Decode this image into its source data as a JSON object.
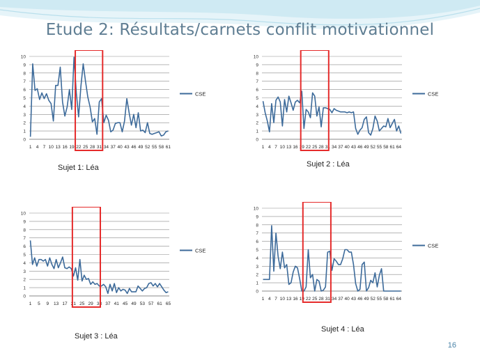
{
  "slide": {
    "title": "Etude 2: Résultats/carnets conflit motivationnel",
    "page_number": "16",
    "colors": {
      "line": "#3c6a9a",
      "highlight": "#e52b2b",
      "title": "#5f7e93",
      "wave": "#c7e6f1"
    }
  },
  "chart_data": [
    {
      "type": "line",
      "subject": "Sujet 1: Léa",
      "legend": "CSE",
      "legend_position": "right",
      "ylim": [
        0,
        10
      ],
      "yticks": [
        "0",
        "1",
        "2",
        "3",
        "4",
        "5",
        "6",
        "7",
        "8",
        "9",
        "10"
      ],
      "xtick_labels": [
        "1",
        "4",
        "7",
        "10",
        "13",
        "16",
        "19",
        "22",
        "25",
        "28",
        "31",
        "34",
        "37",
        "40",
        "43",
        "46",
        "49",
        "52",
        "55",
        "58",
        "61"
      ],
      "xtick_step": 3,
      "grid": true,
      "highlight_range": [
        21,
        32
      ],
      "series": [
        {
          "values": [
            0.3,
            9.1,
            5.9,
            6.1,
            4.8,
            5.6,
            4.9,
            5.5,
            4.7,
            4.3,
            2.2,
            6.5,
            6.5,
            8.7,
            4.5,
            2.8,
            3.9,
            6.0,
            3.6,
            9.9,
            5.6,
            2.7,
            6.4,
            9.1,
            7.0,
            5.1,
            3.9,
            2.1,
            2.5,
            0.6,
            4.5,
            4.9,
            2.0,
            2.9,
            2.3,
            0.9,
            1.1,
            1.9,
            2.0,
            2.0,
            0.9,
            2.2,
            4.9,
            3.2,
            1.7,
            3.0,
            1.4,
            3.2,
            1.0,
            1.1,
            0.8,
            2.0,
            0.7,
            0.6,
            0.7,
            0.8,
            0.9,
            0.4,
            0.5,
            0.9,
            1.0
          ]
        }
      ]
    },
    {
      "type": "line",
      "subject": "Sujet 2 : Léa",
      "legend": "CSE",
      "legend_position": "right",
      "ylim": [
        0,
        10
      ],
      "yticks": [
        "0",
        "1",
        "2",
        "3",
        "4",
        "5",
        "6",
        "7",
        "8",
        "9",
        "10"
      ],
      "xtick_labels": [
        "1",
        "4",
        "7",
        "10",
        "13",
        "16",
        "19",
        "22",
        "25",
        "28",
        "31",
        "34",
        "37",
        "40",
        "43",
        "46",
        "49",
        "52",
        "55",
        "58",
        "61",
        "64"
      ],
      "xtick_step": 3,
      "grid": true,
      "highlight_range": [
        19,
        31
      ],
      "series": [
        {
          "values": [
            4.6,
            3.2,
            2.2,
            0.9,
            4.3,
            2.0,
            4.7,
            5.1,
            4.5,
            1.6,
            4.8,
            3.3,
            5.2,
            4.4,
            3.5,
            4.5,
            4.7,
            4.4,
            5.8,
            1.3,
            3.6,
            3.3,
            2.6,
            5.6,
            5.2,
            2.8,
            3.9,
            1.5,
            3.8,
            3.8,
            3.7,
            3.6,
            3.2,
            3.7,
            3.5,
            3.4,
            3.3,
            3.3,
            3.3,
            3.2,
            3.3,
            3.2,
            3.3,
            1.3,
            0.6,
            1.1,
            1.4,
            2.4,
            2.7,
            0.8,
            0.5,
            1.3,
            2.8,
            2.2,
            1.0,
            1.3,
            1.6,
            1.5,
            2.5,
            1.4,
            1.9,
            2.4,
            1.0,
            1.6,
            0.7
          ]
        }
      ]
    },
    {
      "type": "line",
      "subject": "Sujet 3 : Léa",
      "legend": "CSE",
      "legend_position": "right",
      "ylim": [
        0,
        10
      ],
      "yticks": [
        "0",
        "1",
        "2",
        "3",
        "4",
        "5",
        "6",
        "7",
        "8",
        "9",
        "10"
      ],
      "xtick_labels": [
        "1",
        "5",
        "9",
        "13",
        "17",
        "21",
        "25",
        "29",
        "33",
        "37",
        "41",
        "45",
        "49",
        "53",
        "57",
        "61",
        "65"
      ],
      "xtick_step": 4,
      "grid": true,
      "highlight_range": [
        21,
        33
      ],
      "series": [
        {
          "values": [
            6.7,
            3.8,
            4.6,
            3.6,
            4.4,
            4.4,
            4.2,
            4.4,
            3.6,
            4.6,
            3.8,
            3.3,
            4.4,
            3.4,
            4.0,
            4.7,
            3.4,
            3.3,
            3.5,
            3.3,
            2.4,
            3.4,
            1.9,
            4.4,
            1.8,
            2.5,
            2.0,
            2.1,
            1.4,
            1.7,
            1.4,
            1.5,
            1.2,
            1.2,
            1.4,
            1.1,
            0.3,
            1.4,
            0.6,
            1.5,
            0.4,
            1.0,
            0.6,
            0.8,
            0.7,
            0.3,
            0.9,
            0.5,
            0.5,
            0.5,
            1.2,
            0.9,
            0.6,
            0.9,
            1.0,
            1.5,
            1.6,
            1.2,
            1.5,
            1.1,
            1.5,
            1.1,
            0.7,
            0.4,
            0.5
          ]
        }
      ]
    },
    {
      "type": "line",
      "subject": "Sujet 4 : Léa",
      "legend": "CSE",
      "legend_position": "right",
      "ylim": [
        0,
        10
      ],
      "yticks": [
        "0",
        "1",
        "2",
        "3",
        "4",
        "5",
        "6",
        "7",
        "8",
        "9",
        "10"
      ],
      "xtick_labels": [
        "1",
        "4",
        "7",
        "10",
        "13",
        "16",
        "19",
        "22",
        "25",
        "28",
        "31",
        "34",
        "37",
        "40",
        "43",
        "46",
        "49",
        "52",
        "55",
        "58",
        "61",
        "64"
      ],
      "xtick_step": 3,
      "grid": true,
      "highlight_range": [
        20,
        32
      ],
      "series": [
        {
          "values": [
            1.4,
            1.4,
            1.4,
            1.4,
            7.9,
            2.4,
            7.0,
            4.2,
            2.7,
            4.7,
            2.8,
            3.2,
            0.8,
            1.0,
            2.3,
            3.0,
            2.8,
            1.5,
            0.0,
            0.0,
            0.5,
            5.0,
            1.6,
            2.0,
            0.0,
            1.4,
            1.2,
            0.0,
            0.1,
            0.5,
            4.7,
            4.8,
            2.5,
            3.9,
            3.6,
            3.2,
            3.2,
            3.9,
            5.0,
            5.0,
            4.7,
            4.7,
            3.2,
            0.9,
            0.0,
            0.2,
            3.2,
            3.5,
            0.0,
            0.4,
            1.3,
            1.0,
            2.2,
            0.5,
            1.9,
            2.7,
            0.0,
            0.0,
            0.0,
            0.0,
            0.0,
            0.0,
            0.0,
            0.0,
            0.0
          ]
        }
      ]
    }
  ]
}
